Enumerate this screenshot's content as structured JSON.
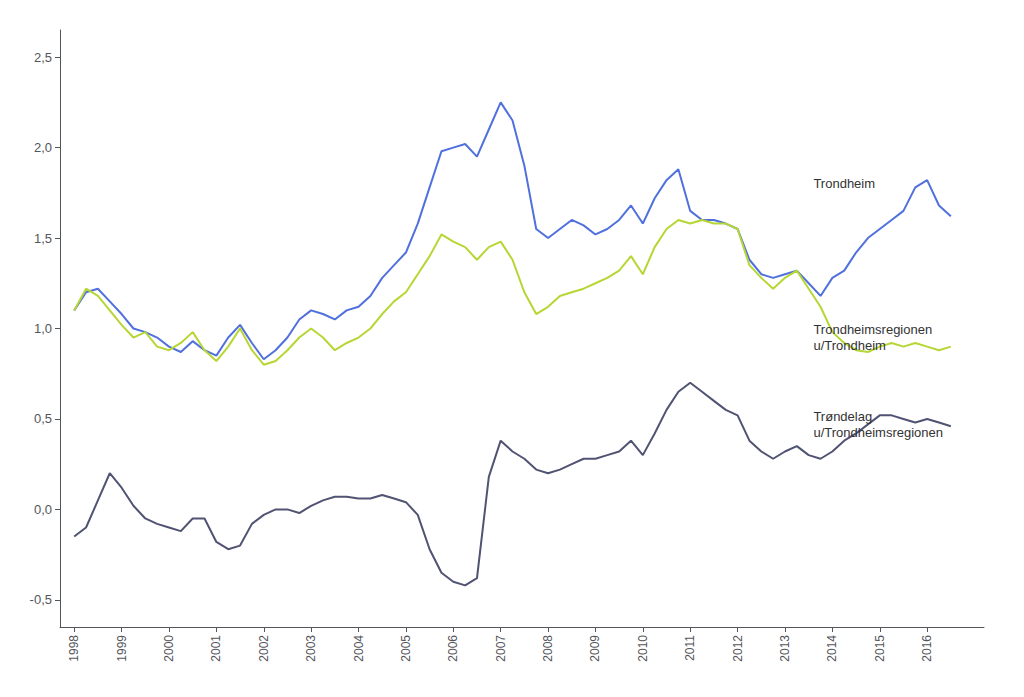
{
  "chart_data": {
    "type": "line",
    "x": [
      1998,
      1998.25,
      1998.5,
      1998.75,
      1999,
      1999.25,
      1999.5,
      1999.75,
      2000,
      2000.25,
      2000.5,
      2000.75,
      2001,
      2001.25,
      2001.5,
      2001.75,
      2002,
      2002.25,
      2002.5,
      2002.75,
      2003,
      2003.25,
      2003.5,
      2003.75,
      2004,
      2004.25,
      2004.5,
      2004.75,
      2005,
      2005.25,
      2005.5,
      2005.75,
      2006,
      2006.25,
      2006.5,
      2006.75,
      2007,
      2007.25,
      2007.5,
      2007.75,
      2008,
      2008.25,
      2008.5,
      2008.75,
      2009,
      2009.25,
      2009.5,
      2009.75,
      2010,
      2010.25,
      2010.5,
      2010.75,
      2011,
      2011.25,
      2011.5,
      2011.75,
      2012,
      2012.25,
      2012.5,
      2012.75,
      2013,
      2013.25,
      2013.5,
      2013.75,
      2014,
      2014.25,
      2014.5,
      2014.75,
      2015,
      2015.25,
      2015.5,
      2015.75,
      2016,
      2016.25,
      2016.5
    ],
    "series": [
      {
        "values": [
          1.1,
          1.2,
          1.22,
          1.15,
          1.08,
          1.0,
          0.98,
          0.95,
          0.9,
          0.87,
          0.93,
          0.88,
          0.85,
          0.95,
          1.02,
          0.92,
          0.83,
          0.88,
          0.95,
          1.05,
          1.1,
          1.08,
          1.05,
          1.1,
          1.12,
          1.18,
          1.28,
          1.35,
          1.42,
          1.58,
          1.78,
          1.98,
          2.0,
          2.02,
          1.95,
          2.1,
          2.25,
          2.15,
          1.9,
          1.55,
          1.5,
          1.55,
          1.6,
          1.57,
          1.52,
          1.55,
          1.6,
          1.68,
          1.58,
          1.72,
          1.82,
          1.88,
          1.65,
          1.6,
          1.6,
          1.58,
          1.55,
          1.38,
          1.3,
          1.28,
          1.3,
          1.32,
          1.25,
          1.18,
          1.28,
          1.32,
          1.42,
          1.5,
          1.55,
          1.6,
          1.65,
          1.78,
          1.82,
          1.68,
          1.62
        ]
      },
      {
        "values": [
          1.1,
          1.22,
          1.18,
          1.1,
          1.02,
          0.95,
          0.98,
          0.9,
          0.88,
          0.92,
          0.98,
          0.88,
          0.82,
          0.9,
          1.0,
          0.88,
          0.8,
          0.82,
          0.88,
          0.95,
          1.0,
          0.95,
          0.88,
          0.92,
          0.95,
          1.0,
          1.08,
          1.15,
          1.2,
          1.3,
          1.4,
          1.52,
          1.48,
          1.45,
          1.38,
          1.45,
          1.48,
          1.38,
          1.2,
          1.08,
          1.12,
          1.18,
          1.2,
          1.22,
          1.25,
          1.28,
          1.32,
          1.4,
          1.3,
          1.45,
          1.55,
          1.6,
          1.58,
          1.6,
          1.58,
          1.58,
          1.55,
          1.35,
          1.28,
          1.22,
          1.28,
          1.32,
          1.22,
          1.12,
          0.98,
          0.92,
          0.88,
          0.87,
          0.9,
          0.92,
          0.9,
          0.92,
          0.9,
          0.88,
          0.9
        ]
      },
      {
        "values": [
          -0.15,
          -0.1,
          0.05,
          0.2,
          0.12,
          0.02,
          -0.05,
          -0.08,
          -0.1,
          -0.12,
          -0.05,
          -0.05,
          -0.18,
          -0.22,
          -0.2,
          -0.08,
          -0.03,
          0.0,
          0.0,
          -0.02,
          0.02,
          0.05,
          0.07,
          0.07,
          0.06,
          0.06,
          0.08,
          0.06,
          0.04,
          -0.03,
          -0.22,
          -0.35,
          -0.4,
          -0.42,
          -0.38,
          0.18,
          0.38,
          0.32,
          0.28,
          0.22,
          0.2,
          0.22,
          0.25,
          0.28,
          0.28,
          0.3,
          0.32,
          0.38,
          0.3,
          0.42,
          0.55,
          0.65,
          0.7,
          0.65,
          0.6,
          0.55,
          0.52,
          0.38,
          0.32,
          0.28,
          0.32,
          0.35,
          0.3,
          0.28,
          0.32,
          0.38,
          0.42,
          0.47,
          0.52,
          0.52,
          0.5,
          0.48,
          0.5,
          0.48,
          0.46
        ]
      }
    ],
    "annotations": [
      {
        "text": "Trondheim",
        "x": 2013.6,
        "y": 1.8
      },
      {
        "text": "Trondheimsregionen\nu/Trondheim",
        "x": 2013.6,
        "y": 0.95
      },
      {
        "text": "Trøndelag\nu/Trondheimsregionen",
        "x": 2013.6,
        "y": 0.47
      }
    ],
    "xlim": [
      1997.7,
      2017.2
    ],
    "xticks": [
      1998,
      1999,
      2000,
      2001,
      2002,
      2003,
      2004,
      2005,
      2006,
      2007,
      2008,
      2009,
      2010,
      2011,
      2012,
      2013,
      2014,
      2015,
      2016
    ],
    "ylim": [
      -0.65,
      2.65
    ],
    "yticks": [
      {
        "value": -0.5,
        "label": "-0,5"
      },
      {
        "value": 0.0,
        "label": "0,0"
      },
      {
        "value": 0.5,
        "label": "0,5"
      },
      {
        "value": 1.0,
        "label": "1,0"
      },
      {
        "value": 1.5,
        "label": "1,5"
      },
      {
        "value": 2.0,
        "label": "2,0"
      },
      {
        "value": 2.5,
        "label": "2,5"
      }
    ],
    "grid": false
  }
}
